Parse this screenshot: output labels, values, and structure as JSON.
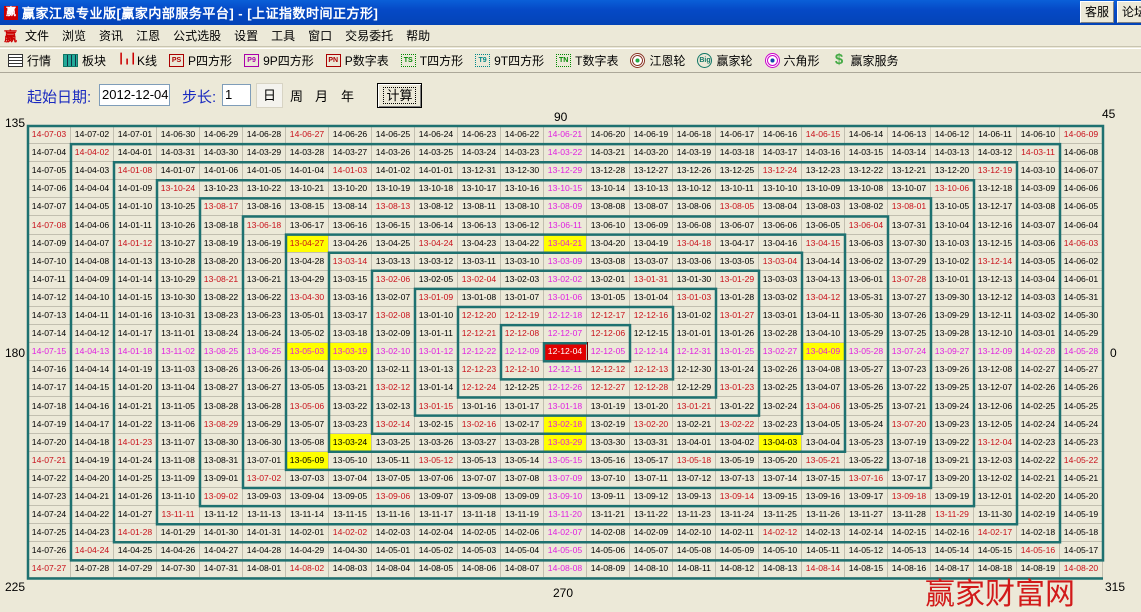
{
  "window": {
    "title": "赢家江恩专业版[赢家内部服务平台] - [上证指数时间正方形]",
    "app_icon": "赢",
    "buttons": [
      "客服",
      "论坛"
    ]
  },
  "menu": {
    "logo": "赢",
    "items": [
      "文件",
      "浏览",
      "资讯",
      "江恩",
      "公式选股",
      "设置",
      "工具",
      "窗口",
      "交易委托",
      "帮助"
    ]
  },
  "toolbar": {
    "items": [
      {
        "label": "行情",
        "icon": "table-icon",
        "badge": ""
      },
      {
        "label": "板块",
        "icon": "blocks-icon",
        "badge": ""
      },
      {
        "label": "K线",
        "icon": "candlestick-icon",
        "badge": ""
      },
      {
        "label": "P四方形",
        "icon": "ps-icon",
        "badge": "PS"
      },
      {
        "label": "9P四方形",
        "icon": "p9-icon",
        "badge": "P9"
      },
      {
        "label": "P数字表",
        "icon": "pn-icon",
        "badge": "PN"
      },
      {
        "label": "T四方形",
        "icon": "ts-icon",
        "badge": "TS"
      },
      {
        "label": "9T四方形",
        "icon": "t9-icon",
        "badge": "T9"
      },
      {
        "label": "T数字表",
        "icon": "tn-icon",
        "badge": "TN"
      },
      {
        "label": "江恩轮",
        "icon": "gann-wheel-icon",
        "badge": ""
      },
      {
        "label": "赢家轮",
        "icon": "big-wheel-icon",
        "badge": "Big"
      },
      {
        "label": "六角形",
        "icon": "hexagon-icon",
        "badge": ""
      },
      {
        "label": "赢家服务",
        "icon": "dollar-icon",
        "badge": "$"
      }
    ]
  },
  "form": {
    "start_date_label": "起始日期:",
    "start_date_value": "2012-12-04",
    "step_label": "步长:",
    "step_value": "1",
    "units": [
      "日",
      "周",
      "月",
      "年"
    ],
    "selected_unit": "日",
    "calculate_label": "计算"
  },
  "angles": {
    "a135": "135",
    "a90": "90",
    "a45": "45",
    "a180": "180",
    "a0": "0",
    "a225": "225",
    "a270": "270",
    "a315": "315"
  },
  "colors": {
    "spiral": "#1e7170",
    "red_text": "#c8101a",
    "axis_text": "#e020e0",
    "yellow_bg": "#ffff00",
    "center_bg": "#e00000",
    "cell_bg": "#ece9d8"
  },
  "grid": {
    "rows": [
      [
        "14-07-03",
        "14-07-02",
        "14-07-01",
        "14-06-30",
        "14-06-29",
        "14-06-28",
        "14-06-27",
        "14-06-26",
        "14-06-25",
        "14-06-24",
        "14-06-23",
        "14-06-22",
        "14-06-21",
        "14-06-20",
        "14-06-19",
        "14-06-18",
        "14-06-17",
        "14-06-16",
        "14-06-15",
        "14-06-14",
        "14-06-13",
        "14-06-12",
        "14-06-11",
        "14-06-10",
        "14-06-09"
      ],
      [
        "14-07-04",
        "14-04-02",
        "14-04-01",
        "14-03-31",
        "14-03-30",
        "14-03-29",
        "14-03-28",
        "14-03-27",
        "14-03-26",
        "14-03-25",
        "14-03-24",
        "14-03-23",
        "14-03-22",
        "14-03-21",
        "14-03-20",
        "14-03-19",
        "14-03-18",
        "14-03-17",
        "14-03-16",
        "14-03-15",
        "14-03-14",
        "14-03-13",
        "14-03-12",
        "14-03-11",
        "14-06-08"
      ],
      [
        "14-07-05",
        "14-04-03",
        "14-01-08",
        "14-01-07",
        "14-01-06",
        "14-01-05",
        "14-01-04",
        "14-01-03",
        "14-01-02",
        "14-01-01",
        "13-12-31",
        "13-12-30",
        "13-12-29",
        "13-12-28",
        "13-12-27",
        "13-12-26",
        "13-12-25",
        "13-12-24",
        "13-12-23",
        "13-12-22",
        "13-12-21",
        "13-12-20",
        "13-12-19",
        "14-03-10",
        "14-06-07"
      ],
      [
        "14-07-06",
        "14-04-04",
        "14-01-09",
        "13-10-24",
        "13-10-23",
        "13-10-22",
        "13-10-21",
        "13-10-20",
        "13-10-19",
        "13-10-18",
        "13-10-17",
        "13-10-16",
        "13-10-15",
        "13-10-14",
        "13-10-13",
        "13-10-12",
        "13-10-11",
        "13-10-10",
        "13-10-09",
        "13-10-08",
        "13-10-07",
        "13-10-06",
        "13-12-18",
        "14-03-09",
        "14-06-06"
      ],
      [
        "14-07-07",
        "14-04-05",
        "14-01-10",
        "13-10-25",
        "13-08-17",
        "13-08-16",
        "13-08-15",
        "13-08-14",
        "13-08-13",
        "13-08-12",
        "13-08-11",
        "13-08-10",
        "13-08-09",
        "13-08-08",
        "13-08-07",
        "13-08-06",
        "13-08-05",
        "13-08-04",
        "13-08-03",
        "13-08-02",
        "13-08-01",
        "13-10-05",
        "13-12-17",
        "14-03-08",
        "14-06-05"
      ],
      [
        "14-07-08",
        "14-04-06",
        "14-01-11",
        "13-10-26",
        "13-08-18",
        "13-06-18",
        "13-06-17",
        "13-06-16",
        "13-06-15",
        "13-06-14",
        "13-06-13",
        "13-06-12",
        "13-06-11",
        "13-06-10",
        "13-06-09",
        "13-06-08",
        "13-06-07",
        "13-06-06",
        "13-06-05",
        "13-06-04",
        "13-07-31",
        "13-10-04",
        "13-12-16",
        "14-03-07",
        "14-06-04"
      ],
      [
        "14-07-09",
        "14-04-07",
        "14-01-12",
        "13-10-27",
        "13-08-19",
        "13-06-19",
        "13-04-27",
        "13-04-26",
        "13-04-25",
        "13-04-24",
        "13-04-23",
        "13-04-22",
        "13-04-21",
        "13-04-20",
        "13-04-19",
        "13-04-18",
        "13-04-17",
        "13-04-16",
        "13-04-15",
        "13-06-03",
        "13-07-30",
        "13-10-03",
        "13-12-15",
        "14-03-06",
        "14-06-03"
      ],
      [
        "14-07-10",
        "14-04-08",
        "14-01-13",
        "13-10-28",
        "13-08-20",
        "13-06-20",
        "13-04-28",
        "13-03-14",
        "13-03-13",
        "13-03-12",
        "13-03-11",
        "13-03-10",
        "13-03-09",
        "13-03-08",
        "13-03-07",
        "13-03-06",
        "13-03-05",
        "13-03-04",
        "13-04-14",
        "13-06-02",
        "13-07-29",
        "13-10-02",
        "13-12-14",
        "14-03-05",
        "14-06-02"
      ],
      [
        "14-07-11",
        "14-04-09",
        "14-01-14",
        "13-10-29",
        "13-08-21",
        "13-06-21",
        "13-04-29",
        "13-03-15",
        "13-02-06",
        "13-02-05",
        "13-02-04",
        "13-02-03",
        "13-02-02",
        "13-02-01",
        "13-01-31",
        "13-01-30",
        "13-01-29",
        "13-03-03",
        "13-04-13",
        "13-06-01",
        "13-07-28",
        "13-10-01",
        "13-12-13",
        "14-03-04",
        "14-06-01"
      ],
      [
        "14-07-12",
        "14-04-10",
        "14-01-15",
        "13-10-30",
        "13-08-22",
        "13-06-22",
        "13-04-30",
        "13-03-16",
        "13-02-07",
        "13-01-09",
        "13-01-08",
        "13-01-07",
        "13-01-06",
        "13-01-05",
        "13-01-04",
        "13-01-03",
        "13-01-28",
        "13-03-02",
        "13-04-12",
        "13-05-31",
        "13-07-27",
        "13-09-30",
        "13-12-12",
        "14-03-03",
        "14-05-31"
      ],
      [
        "14-07-13",
        "14-04-11",
        "14-01-16",
        "13-10-31",
        "13-08-23",
        "13-06-23",
        "13-05-01",
        "13-03-17",
        "13-02-08",
        "13-01-10",
        "12-12-20",
        "12-12-19",
        "12-12-18",
        "12-12-17",
        "12-12-16",
        "13-01-02",
        "13-01-27",
        "13-03-01",
        "13-04-11",
        "13-05-30",
        "13-07-26",
        "13-09-29",
        "13-12-11",
        "14-03-02",
        "14-05-30"
      ],
      [
        "14-07-14",
        "14-04-12",
        "14-01-17",
        "13-11-01",
        "13-08-24",
        "13-06-24",
        "13-05-02",
        "13-03-18",
        "13-02-09",
        "13-01-11",
        "12-12-21",
        "12-12-08",
        "12-12-07",
        "12-12-06",
        "12-12-15",
        "13-01-01",
        "13-01-26",
        "13-02-28",
        "13-04-10",
        "13-05-29",
        "13-07-25",
        "13-09-28",
        "13-12-10",
        "14-03-01",
        "14-05-29"
      ],
      [
        "14-07-15",
        "14-04-13",
        "14-01-18",
        "13-11-02",
        "13-08-25",
        "13-06-25",
        "13-05-03",
        "13-03-19",
        "13-02-10",
        "13-01-12",
        "12-12-22",
        "12-12-09",
        "12-12-04",
        "12-12-05",
        "12-12-14",
        "12-12-31",
        "13-01-25",
        "13-02-27",
        "13-04-09",
        "13-05-28",
        "13-07-24",
        "13-09-27",
        "13-12-09",
        "14-02-28",
        "14-05-28"
      ],
      [
        "14-07-16",
        "14-04-14",
        "14-01-19",
        "13-11-03",
        "13-08-26",
        "13-06-26",
        "13-05-04",
        "13-03-20",
        "13-02-11",
        "13-01-13",
        "12-12-23",
        "12-12-10",
        "12-12-11",
        "12-12-12",
        "12-12-13",
        "12-12-30",
        "13-01-24",
        "13-02-26",
        "13-04-08",
        "13-05-27",
        "13-07-23",
        "13-09-26",
        "13-12-08",
        "14-02-27",
        "14-05-27"
      ],
      [
        "14-07-17",
        "14-04-15",
        "14-01-20",
        "13-11-04",
        "13-08-27",
        "13-06-27",
        "13-05-05",
        "13-03-21",
        "13-02-12",
        "13-01-14",
        "12-12-24",
        "12-12-25",
        "12-12-26",
        "12-12-27",
        "12-12-28",
        "12-12-29",
        "13-01-23",
        "13-02-25",
        "13-04-07",
        "13-05-26",
        "13-07-22",
        "13-09-25",
        "13-12-07",
        "14-02-26",
        "14-05-26"
      ],
      [
        "14-07-18",
        "14-04-16",
        "14-01-21",
        "13-11-05",
        "13-08-28",
        "13-06-28",
        "13-05-06",
        "13-03-22",
        "13-02-13",
        "13-01-15",
        "13-01-16",
        "13-01-17",
        "13-01-18",
        "13-01-19",
        "13-01-20",
        "13-01-21",
        "13-01-22",
        "13-02-24",
        "13-04-06",
        "13-05-25",
        "13-07-21",
        "13-09-24",
        "13-12-06",
        "14-02-25",
        "14-05-25"
      ],
      [
        "14-07-19",
        "14-04-17",
        "14-01-22",
        "13-11-06",
        "13-08-29",
        "13-06-29",
        "13-05-07",
        "13-03-23",
        "13-02-14",
        "13-02-15",
        "13-02-16",
        "13-02-17",
        "13-02-18",
        "13-02-19",
        "13-02-20",
        "13-02-21",
        "13-02-22",
        "13-02-23",
        "13-04-05",
        "13-05-24",
        "13-07-20",
        "13-09-23",
        "13-12-05",
        "14-02-24",
        "14-05-24"
      ],
      [
        "14-07-20",
        "14-04-18",
        "14-01-23",
        "13-11-07",
        "13-08-30",
        "13-06-30",
        "13-05-08",
        "13-03-24",
        "13-03-25",
        "13-03-26",
        "13-03-27",
        "13-03-28",
        "13-03-29",
        "13-03-30",
        "13-03-31",
        "13-04-01",
        "13-04-02",
        "13-04-03",
        "13-04-04",
        "13-05-23",
        "13-07-19",
        "13-09-22",
        "13-12-04",
        "14-02-23",
        "14-05-23"
      ],
      [
        "14-07-21",
        "14-04-19",
        "14-01-24",
        "13-11-08",
        "13-08-31",
        "13-07-01",
        "13-05-09",
        "13-05-10",
        "13-05-11",
        "13-05-12",
        "13-05-13",
        "13-05-14",
        "13-05-15",
        "13-05-16",
        "13-05-17",
        "13-05-18",
        "13-05-19",
        "13-05-20",
        "13-05-21",
        "13-05-22",
        "13-07-18",
        "13-09-21",
        "13-12-03",
        "14-02-22",
        "14-05-22"
      ],
      [
        "14-07-22",
        "14-04-20",
        "14-01-25",
        "13-11-09",
        "13-09-01",
        "13-07-02",
        "13-07-03",
        "13-07-04",
        "13-07-05",
        "13-07-06",
        "13-07-07",
        "13-07-08",
        "13-07-09",
        "13-07-10",
        "13-07-11",
        "13-07-12",
        "13-07-13",
        "13-07-14",
        "13-07-15",
        "13-07-16",
        "13-07-17",
        "13-09-20",
        "13-12-02",
        "14-02-21",
        "14-05-21"
      ],
      [
        "14-07-23",
        "14-04-21",
        "14-01-26",
        "13-11-10",
        "13-09-02",
        "13-09-03",
        "13-09-04",
        "13-09-05",
        "13-09-06",
        "13-09-07",
        "13-09-08",
        "13-09-09",
        "13-09-10",
        "13-09-11",
        "13-09-12",
        "13-09-13",
        "13-09-14",
        "13-09-15",
        "13-09-16",
        "13-09-17",
        "13-09-18",
        "13-09-19",
        "13-12-01",
        "14-02-20",
        "14-05-20"
      ],
      [
        "14-07-24",
        "14-04-22",
        "14-01-27",
        "13-11-11",
        "13-11-12",
        "13-11-13",
        "13-11-14",
        "13-11-15",
        "13-11-16",
        "13-11-17",
        "13-11-18",
        "13-11-19",
        "13-11-20",
        "13-11-21",
        "13-11-22",
        "13-11-23",
        "13-11-24",
        "13-11-25",
        "13-11-26",
        "13-11-27",
        "13-11-28",
        "13-11-29",
        "13-11-30",
        "14-02-19",
        "14-05-19"
      ],
      [
        "14-07-25",
        "14-04-23",
        "14-01-28",
        "14-01-29",
        "14-01-30",
        "14-01-31",
        "14-02-01",
        "14-02-02",
        "14-02-03",
        "14-02-04",
        "14-02-05",
        "14-02-06",
        "14-02-07",
        "14-02-08",
        "14-02-09",
        "14-02-10",
        "14-02-11",
        "14-02-12",
        "14-02-13",
        "14-02-14",
        "14-02-15",
        "14-02-16",
        "14-02-17",
        "14-02-18",
        "14-05-18"
      ],
      [
        "14-07-26",
        "14-04-24",
        "14-04-25",
        "14-04-26",
        "14-04-27",
        "14-04-28",
        "14-04-29",
        "14-04-30",
        "14-05-01",
        "14-05-02",
        "14-05-03",
        "14-05-04",
        "14-05-05",
        "14-05-06",
        "14-05-07",
        "14-05-08",
        "14-05-09",
        "14-05-10",
        "14-05-11",
        "14-05-12",
        "14-05-13",
        "14-05-14",
        "14-05-15",
        "14-05-16",
        "14-05-17"
      ],
      [
        "14-07-27",
        "14-07-28",
        "14-07-29",
        "14-07-30",
        "14-07-31",
        "14-08-01",
        "14-08-02",
        "14-08-03",
        "14-08-04",
        "14-08-05",
        "14-08-06",
        "14-08-07",
        "14-08-08",
        "14-08-09",
        "14-08-10",
        "14-08-11",
        "14-08-12",
        "14-08-13",
        "14-08-14",
        "14-08-15",
        "14-08-16",
        "14-08-17",
        "14-08-18",
        "14-08-19",
        "14-08-20"
      ]
    ],
    "center": "12-12-04",
    "red_dates": [
      "14-07-03",
      "14-06-27",
      "14-04-02",
      "14-01-08",
      "14-01-03",
      "13-10-24",
      "13-08-17",
      "13-08-13",
      "14-07-08",
      "13-06-18",
      "14-01-12",
      "13-03-14",
      "13-08-21",
      "13-02-06",
      "13-04-30",
      "13-02-08",
      "13-01-09",
      "13-12-24",
      "13-08-05",
      "13-04-24",
      "13-04-18",
      "13-03-04",
      "13-02-04",
      "13-01-31",
      "13-01-29",
      "13-01-03",
      "12-12-20",
      "12-12-19",
      "12-12-17",
      "12-12-16",
      "13-01-27",
      "12-12-21",
      "12-12-08",
      "12-12-06",
      "14-06-15",
      "14-06-09",
      "14-03-11",
      "13-12-19",
      "13-10-06",
      "13-08-01",
      "13-06-04",
      "13-04-15",
      "14-06-03",
      "13-12-14",
      "13-07-28",
      "13-04-12",
      "13-02-12",
      "13-05-06",
      "13-08-29",
      "13-02-14",
      "14-01-23",
      "14-07-21",
      "13-07-02",
      "13-09-02",
      "13-09-06",
      "13-11-11",
      "14-01-28",
      "14-02-02",
      "14-04-24",
      "14-07-27",
      "14-08-02",
      "12-12-23",
      "12-12-10",
      "12-12-12",
      "12-12-13",
      "12-12-24",
      "12-12-27",
      "12-12-28",
      "13-01-23",
      "13-01-15",
      "13-01-21",
      "13-02-16",
      "13-02-20",
      "13-02-22",
      "13-05-12",
      "13-05-18",
      "13-09-14",
      "14-02-12",
      "13-04-06",
      "13-07-20",
      "13-12-04",
      "13-05-21",
      "14-05-22",
      "13-07-16",
      "13-09-18",
      "13-11-29",
      "14-02-17",
      "14-05-16",
      "14-08-14",
      "14-08-20",
      "13-04-27"
    ],
    "yellow_dates": [
      "13-04-27",
      "13-04-21",
      "13-05-03",
      "13-03-19",
      "13-04-09",
      "13-03-24",
      "13-05-09",
      "13-02-18",
      "13-03-29",
      "13-04-03"
    ]
  },
  "watermark": "赢家财富网"
}
